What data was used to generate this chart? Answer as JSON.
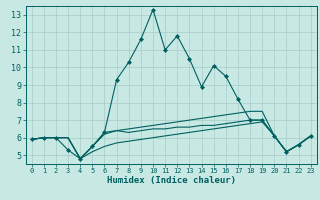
{
  "xlabel": "Humidex (Indice chaleur)",
  "xlim": [
    -0.5,
    23.5
  ],
  "ylim": [
    4.5,
    13.5
  ],
  "xticks": [
    0,
    1,
    2,
    3,
    4,
    5,
    6,
    7,
    8,
    9,
    10,
    11,
    12,
    13,
    14,
    15,
    16,
    17,
    18,
    19,
    20,
    21,
    22,
    23
  ],
  "yticks": [
    5,
    6,
    7,
    8,
    9,
    10,
    11,
    12,
    13
  ],
  "background_color": "#c8e8e4",
  "grid_color": "#a8ccca",
  "line_color": "#006060",
  "lines": [
    {
      "x": [
        0,
        1,
        2,
        3,
        4,
        5,
        6,
        7,
        8,
        9,
        10,
        11,
        12,
        13,
        14,
        15,
        16,
        17,
        18,
        19,
        20,
        21,
        22,
        23
      ],
      "y": [
        5.9,
        6.0,
        6.0,
        5.3,
        4.8,
        5.5,
        6.3,
        9.3,
        10.3,
        11.6,
        13.3,
        11.0,
        11.8,
        10.5,
        8.9,
        10.1,
        9.5,
        8.2,
        7.0,
        7.0,
        6.1,
        5.2,
        5.6,
        6.1
      ],
      "marker": true
    },
    {
      "x": [
        0,
        1,
        2,
        3,
        4,
        5,
        6,
        7,
        8,
        9,
        10,
        11,
        12,
        13,
        14,
        15,
        16,
        17,
        18,
        19,
        20,
        21,
        22,
        23
      ],
      "y": [
        5.9,
        6.0,
        6.0,
        6.0,
        4.8,
        5.5,
        6.2,
        6.4,
        6.5,
        6.6,
        6.7,
        6.8,
        6.9,
        7.0,
        7.1,
        7.2,
        7.3,
        7.4,
        7.5,
        7.5,
        6.1,
        5.2,
        5.6,
        6.1
      ],
      "marker": false
    },
    {
      "x": [
        0,
        1,
        2,
        3,
        4,
        5,
        6,
        7,
        8,
        9,
        10,
        11,
        12,
        13,
        14,
        15,
        16,
        17,
        18,
        19,
        20,
        21,
        22,
        23
      ],
      "y": [
        5.9,
        6.0,
        6.0,
        6.0,
        4.8,
        5.5,
        6.3,
        6.4,
        6.3,
        6.4,
        6.5,
        6.5,
        6.6,
        6.6,
        6.7,
        6.7,
        6.8,
        6.9,
        7.0,
        7.0,
        6.1,
        5.2,
        5.6,
        6.1
      ],
      "marker": false
    },
    {
      "x": [
        0,
        1,
        2,
        3,
        4,
        5,
        6,
        7,
        8,
        9,
        10,
        11,
        12,
        13,
        14,
        15,
        16,
        17,
        18,
        19,
        20,
        21,
        22,
        23
      ],
      "y": [
        5.9,
        6.0,
        6.0,
        6.0,
        4.8,
        5.2,
        5.5,
        5.7,
        5.8,
        5.9,
        6.0,
        6.1,
        6.2,
        6.3,
        6.4,
        6.5,
        6.6,
        6.7,
        6.8,
        6.9,
        6.1,
        5.2,
        5.6,
        6.1
      ],
      "marker": false
    }
  ]
}
